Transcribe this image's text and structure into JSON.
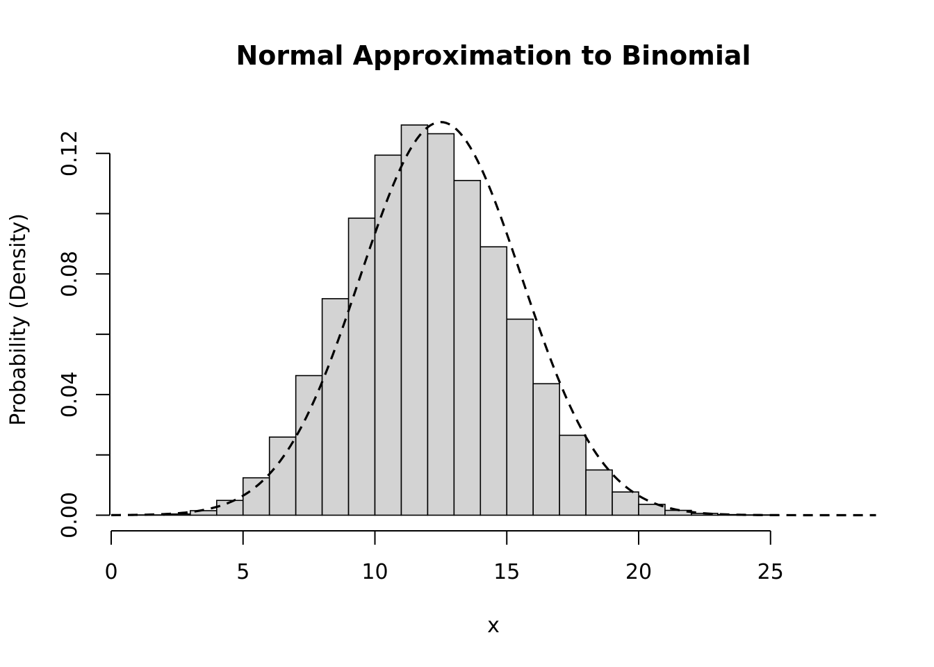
{
  "chart_data": {
    "type": "bar",
    "title": "Normal Approximation to Binomial",
    "xlabel": "x",
    "ylabel": "Probability (Density)",
    "x_ticks": [
      0,
      5,
      10,
      15,
      20,
      25
    ],
    "y_ticks": [
      "0.00",
      "0.04",
      "0.08",
      "0.12"
    ],
    "y_tick_values": [
      0.0,
      0.04,
      0.08,
      0.12
    ],
    "y_minor_ticks": [
      0.02,
      0.06,
      0.1
    ],
    "xlim": [
      0,
      29
    ],
    "ylim": [
      0,
      0.13
    ],
    "bins": [
      {
        "x0": 0,
        "x1": 1,
        "value": 0.0
      },
      {
        "x0": 1,
        "x1": 2,
        "value": 0.0001
      },
      {
        "x0": 2,
        "x1": 3,
        "value": 0.0004
      },
      {
        "x0": 3,
        "x1": 4,
        "value": 0.0015
      },
      {
        "x0": 4,
        "x1": 5,
        "value": 0.0049
      },
      {
        "x0": 5,
        "x1": 6,
        "value": 0.0124
      },
      {
        "x0": 6,
        "x1": 7,
        "value": 0.0259
      },
      {
        "x0": 7,
        "x1": 8,
        "value": 0.0463
      },
      {
        "x0": 8,
        "x1": 9,
        "value": 0.0718
      },
      {
        "x0": 9,
        "x1": 10,
        "value": 0.0985
      },
      {
        "x0": 10,
        "x1": 11,
        "value": 0.1194
      },
      {
        "x0": 11,
        "x1": 12,
        "value": 0.1294
      },
      {
        "x0": 12,
        "x1": 13,
        "value": 0.1265
      },
      {
        "x0": 13,
        "x1": 14,
        "value": 0.111
      },
      {
        "x0": 14,
        "x1": 15,
        "value": 0.089
      },
      {
        "x0": 15,
        "x1": 16,
        "value": 0.065
      },
      {
        "x0": 16,
        "x1": 17,
        "value": 0.0436
      },
      {
        "x0": 17,
        "x1": 18,
        "value": 0.0265
      },
      {
        "x0": 18,
        "x1": 19,
        "value": 0.015
      },
      {
        "x0": 19,
        "x1": 20,
        "value": 0.0077
      },
      {
        "x0": 20,
        "x1": 21,
        "value": 0.0036
      },
      {
        "x0": 21,
        "x1": 22,
        "value": 0.0016
      },
      {
        "x0": 22,
        "x1": 23,
        "value": 0.0006
      },
      {
        "x0": 23,
        "x1": 24,
        "value": 0.0002
      },
      {
        "x0": 24,
        "x1": 25,
        "value": 0.0001
      },
      {
        "x0": 25,
        "x1": 26,
        "value": 0.0
      },
      {
        "x0": 26,
        "x1": 27,
        "value": 0.0
      },
      {
        "x0": 27,
        "x1": 28,
        "value": 0.0
      }
    ],
    "normal_curve": {
      "style": "dashed",
      "mean": 12.5,
      "sd": 3.06,
      "x_range": [
        0,
        29
      ]
    },
    "grid": false,
    "legend": "none"
  }
}
